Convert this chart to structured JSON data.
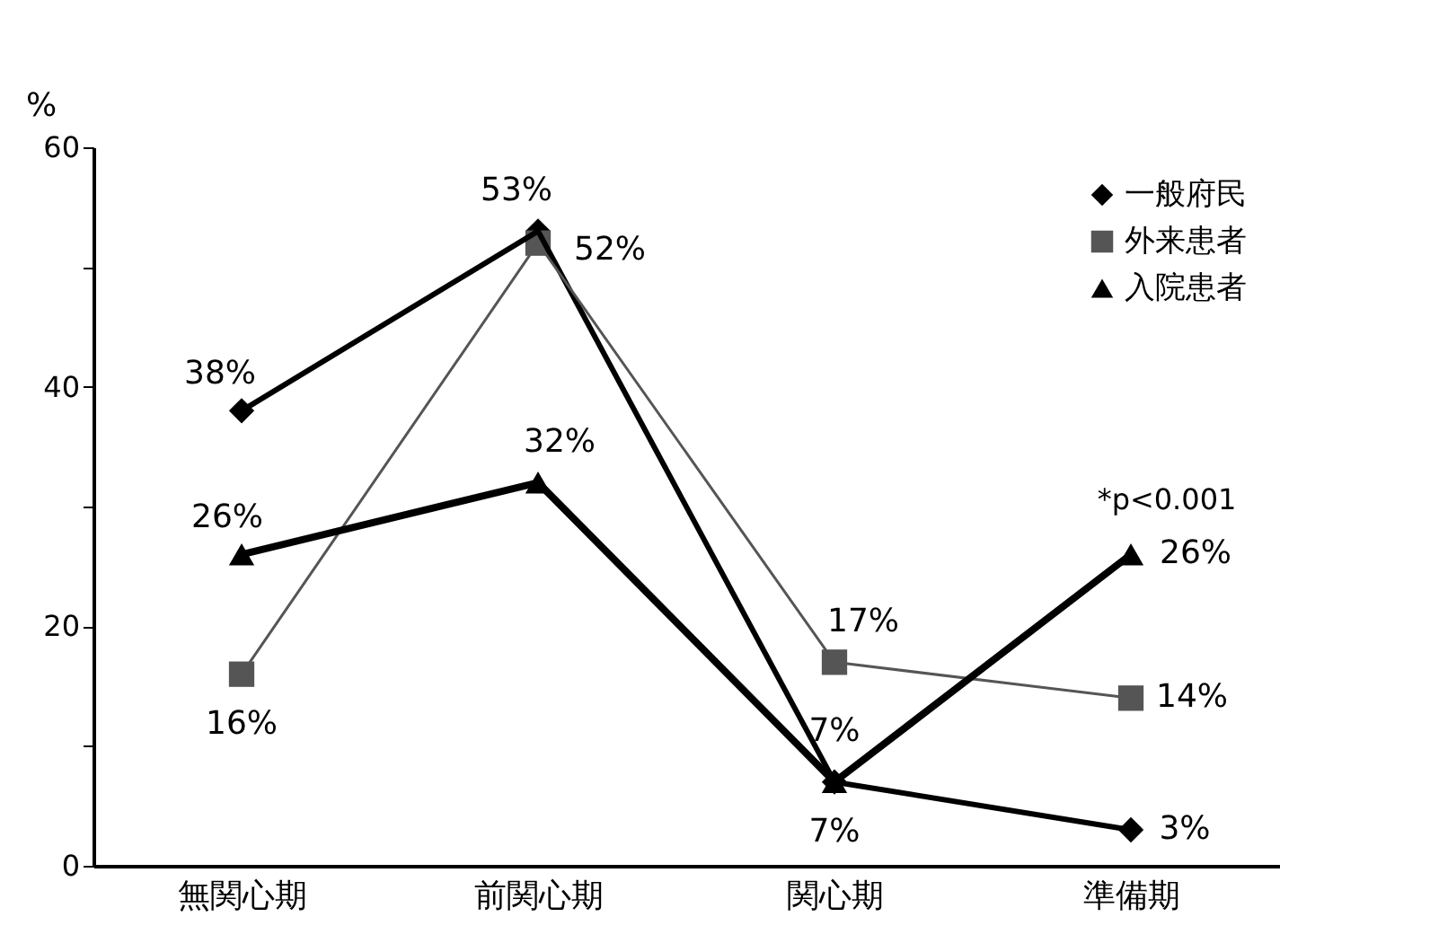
{
  "chart_data": {
    "type": "line",
    "ylabel": "%",
    "categories": [
      "無関心期",
      "前関心期",
      "関心期",
      "準備期"
    ],
    "series": [
      {
        "name": "一般府民",
        "color": "#000000",
        "marker": "diamond",
        "line_style": "solid",
        "values": [
          38,
          53,
          7,
          3
        ],
        "value_labels": [
          "38%",
          "53%",
          "7%",
          "3%"
        ]
      },
      {
        "name": "外来患者",
        "color": "#555555",
        "marker": "square",
        "line_style": "solid",
        "values": [
          16,
          52,
          17,
          14
        ],
        "value_labels": [
          "16%",
          "52%",
          "17%",
          "14%"
        ]
      },
      {
        "name": "入院患者",
        "color": "#000000",
        "marker": "triangle",
        "line_style": "solid",
        "values": [
          26,
          32,
          7,
          26
        ],
        "value_labels": [
          "26%",
          "32%",
          "7%",
          "26%"
        ]
      }
    ],
    "ylim": [
      0,
      60
    ],
    "yticks": [
      0,
      {
        "value": 10,
        "label": null
      },
      20,
      {
        "value": 30,
        "label": null
      },
      40,
      {
        "value": 50,
        "label": null
      },
      60
    ],
    "grid": false,
    "legend": "top right",
    "annotations": [
      {
        "text": "*p<0.001",
        "x": "準備期",
        "y": 26
      }
    ]
  }
}
